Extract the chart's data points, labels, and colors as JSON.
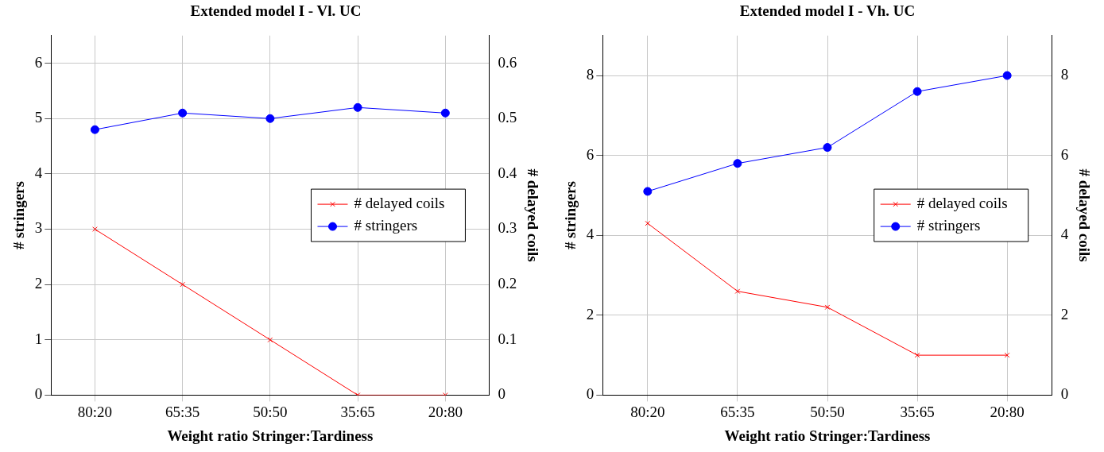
{
  "chart_data": [
    {
      "type": "line",
      "title": "Extended model I - Vl. UC",
      "xlabel": "Weight ratio Stringer:Tardiness",
      "ylabel": "# stringers",
      "y2label": "# delayed coils",
      "categories": [
        "80:20",
        "65:35",
        "50:50",
        "35:65",
        "20:80"
      ],
      "series": [
        {
          "name": "# delayed coils",
          "color": "#ff0000",
          "marker": "cross",
          "axis": "y2",
          "values": [
            0.3,
            0.2,
            0.1,
            0,
            0
          ]
        },
        {
          "name": "# stringers",
          "color": "#0000ff",
          "marker": "circle",
          "values": [
            4.8,
            5.1,
            5.0,
            5.2,
            5.1
          ]
        }
      ],
      "ylim": [
        0,
        6.5
      ],
      "yticks": [
        0,
        1,
        2,
        3,
        4,
        5,
        6
      ],
      "y2lim": [
        0,
        0.65
      ],
      "y2ticks": [
        0,
        0.1,
        0.2,
        0.3,
        0.4,
        0.5,
        0.6
      ],
      "grid": true,
      "legend": "right",
      "line_style": "solid"
    },
    {
      "type": "line",
      "title": "Extended model I - Vh. UC",
      "xlabel": "Weight ratio Stringer:Tardiness",
      "ylabel": "# stringers",
      "y2label": "# delayed coils",
      "categories": [
        "80:20",
        "65:35",
        "50:50",
        "35:65",
        "20:80"
      ],
      "series": [
        {
          "name": "# delayed coils",
          "color": "#ff0000",
          "marker": "cross",
          "axis": "y2",
          "values": [
            4.3,
            2.6,
            2.2,
            1.0,
            1.0
          ]
        },
        {
          "name": "# stringers",
          "color": "#0000ff",
          "marker": "circle",
          "values": [
            5.1,
            5.8,
            6.2,
            7.6,
            8.0
          ]
        }
      ],
      "ylim": [
        0,
        9
      ],
      "yticks": [
        0,
        2,
        4,
        6,
        8
      ],
      "y2lim": [
        0,
        9
      ],
      "y2ticks": [
        0,
        2,
        4,
        6,
        8
      ],
      "grid": true,
      "legend": "right",
      "line_style": "solid"
    }
  ]
}
